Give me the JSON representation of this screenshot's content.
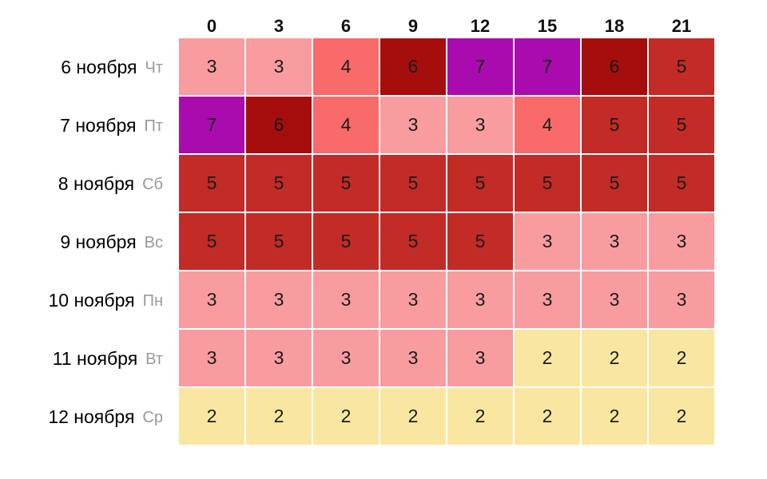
{
  "chart_data": {
    "type": "heatmap",
    "x_ticks": [
      "0",
      "3",
      "6",
      "9",
      "12",
      "15",
      "18",
      "21"
    ],
    "rows": [
      {
        "date": "6 ноября",
        "weekday": "Чт",
        "values": [
          3,
          3,
          4,
          6,
          7,
          7,
          6,
          5
        ]
      },
      {
        "date": "7 ноября",
        "weekday": "Пт",
        "values": [
          7,
          6,
          4,
          3,
          3,
          4,
          5,
          5
        ]
      },
      {
        "date": "8 ноября",
        "weekday": "Сб",
        "values": [
          5,
          5,
          5,
          5,
          5,
          5,
          5,
          5
        ]
      },
      {
        "date": "9 ноября",
        "weekday": "Вс",
        "values": [
          5,
          5,
          5,
          5,
          5,
          3,
          3,
          3
        ]
      },
      {
        "date": "10 ноября",
        "weekday": "Пн",
        "values": [
          3,
          3,
          3,
          3,
          3,
          3,
          3,
          3
        ]
      },
      {
        "date": "11 ноября",
        "weekday": "Вт",
        "values": [
          3,
          3,
          3,
          3,
          3,
          2,
          2,
          2
        ]
      },
      {
        "date": "12 ноября",
        "weekday": "Ср",
        "values": [
          2,
          2,
          2,
          2,
          2,
          2,
          2,
          2
        ]
      }
    ],
    "value_colors": {
      "2": "#F9E7A1",
      "3": "#F89CA0",
      "4": "#F96A6A",
      "5": "#C32B26",
      "6": "#A60E0D",
      "7": "#AA0BAE"
    },
    "value_range": [
      2,
      7
    ],
    "grid": false,
    "legend": false,
    "cell_text_color": "#1a1a1a"
  }
}
